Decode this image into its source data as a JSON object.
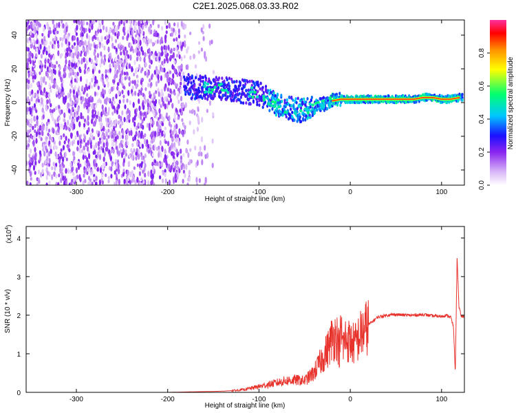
{
  "page": {
    "title": "C2E1.2025.068.03.33.R02"
  },
  "chart_data": [
    {
      "type": "heatmap",
      "xlabel": "Height of straight line (km)",
      "ylabel": "Frequency (Hz)",
      "xlim": [
        -355,
        125
      ],
      "ylim": [
        -49,
        49
      ],
      "x_ticks": [
        -300,
        -200,
        -100,
        0,
        100
      ],
      "y_ticks": [
        -40,
        -20,
        0,
        20,
        40
      ],
      "colorbar": {
        "label": "Normalized spectral amplitude",
        "ticks": [
          0.0,
          0.2,
          0.4,
          0.6,
          0.8
        ],
        "range": [
          0,
          1
        ],
        "colormap": [
          "#ffffff",
          "#c9a8f5",
          "#7b1ff0",
          "#2a10ff",
          "#00c8ff",
          "#00ff70",
          "#ffff00",
          "#ff8000",
          "#ff0000"
        ]
      },
      "trace": {
        "x": [
          -182,
          -170,
          -160,
          -150,
          -140,
          -130,
          -120,
          -110,
          -100,
          -90,
          -80,
          -70,
          -60,
          -50,
          -40,
          -30,
          -20,
          -10,
          0,
          10,
          20,
          30,
          40,
          50,
          60,
          70,
          80,
          90,
          100,
          110,
          120
        ],
        "y": [
          10,
          9,
          9,
          8,
          8,
          8,
          7,
          6,
          5,
          2,
          -1,
          -3,
          -4,
          -5,
          -3,
          -1,
          1,
          2,
          2,
          2,
          2,
          2,
          2,
          2,
          2,
          2,
          3,
          3,
          2,
          2,
          3
        ]
      }
    },
    {
      "type": "line",
      "xlabel": "Height of straight line (km)",
      "ylabel": "SNR (10 * v/v)",
      "y_scale_note": "(x10",
      "y_scale_exp": "4",
      "xlim": [
        -355,
        125
      ],
      "ylim": [
        0,
        4.3
      ],
      "x_ticks": [
        -300,
        -200,
        -100,
        0,
        100
      ],
      "y_ticks": [
        0,
        1,
        2,
        3,
        4
      ],
      "series": [
        {
          "color": "#e8322c",
          "x": [
            -355,
            -300,
            -250,
            -200,
            -180,
            -160,
            -140,
            -120,
            -110,
            -100,
            -90,
            -80,
            -70,
            -60,
            -50,
            -40,
            -35,
            -30,
            -25,
            -20,
            -15,
            -12,
            -10,
            -8,
            -5,
            0,
            5,
            10,
            15,
            20,
            25,
            30,
            40,
            50,
            60,
            70,
            80,
            90,
            100,
            105,
            110,
            113,
            115,
            117,
            119,
            122,
            125
          ],
          "y": [
            0,
            0,
            0,
            0,
            0.01,
            0.02,
            0.03,
            0.06,
            0.1,
            0.15,
            0.2,
            0.25,
            0.3,
            0.32,
            0.3,
            0.5,
            0.7,
            0.9,
            1.1,
            1.4,
            1.5,
            1.1,
            1.6,
            1.2,
            1.4,
            1.3,
            1.25,
            1.45,
            1.6,
            1.75,
            1.85,
            1.95,
            2.0,
            2.02,
            2.0,
            2.0,
            2.02,
            1.98,
            1.97,
            2.0,
            1.95,
            1.7,
            0.5,
            3.6,
            2.2,
            1.95,
            2.0
          ]
        }
      ]
    }
  ]
}
